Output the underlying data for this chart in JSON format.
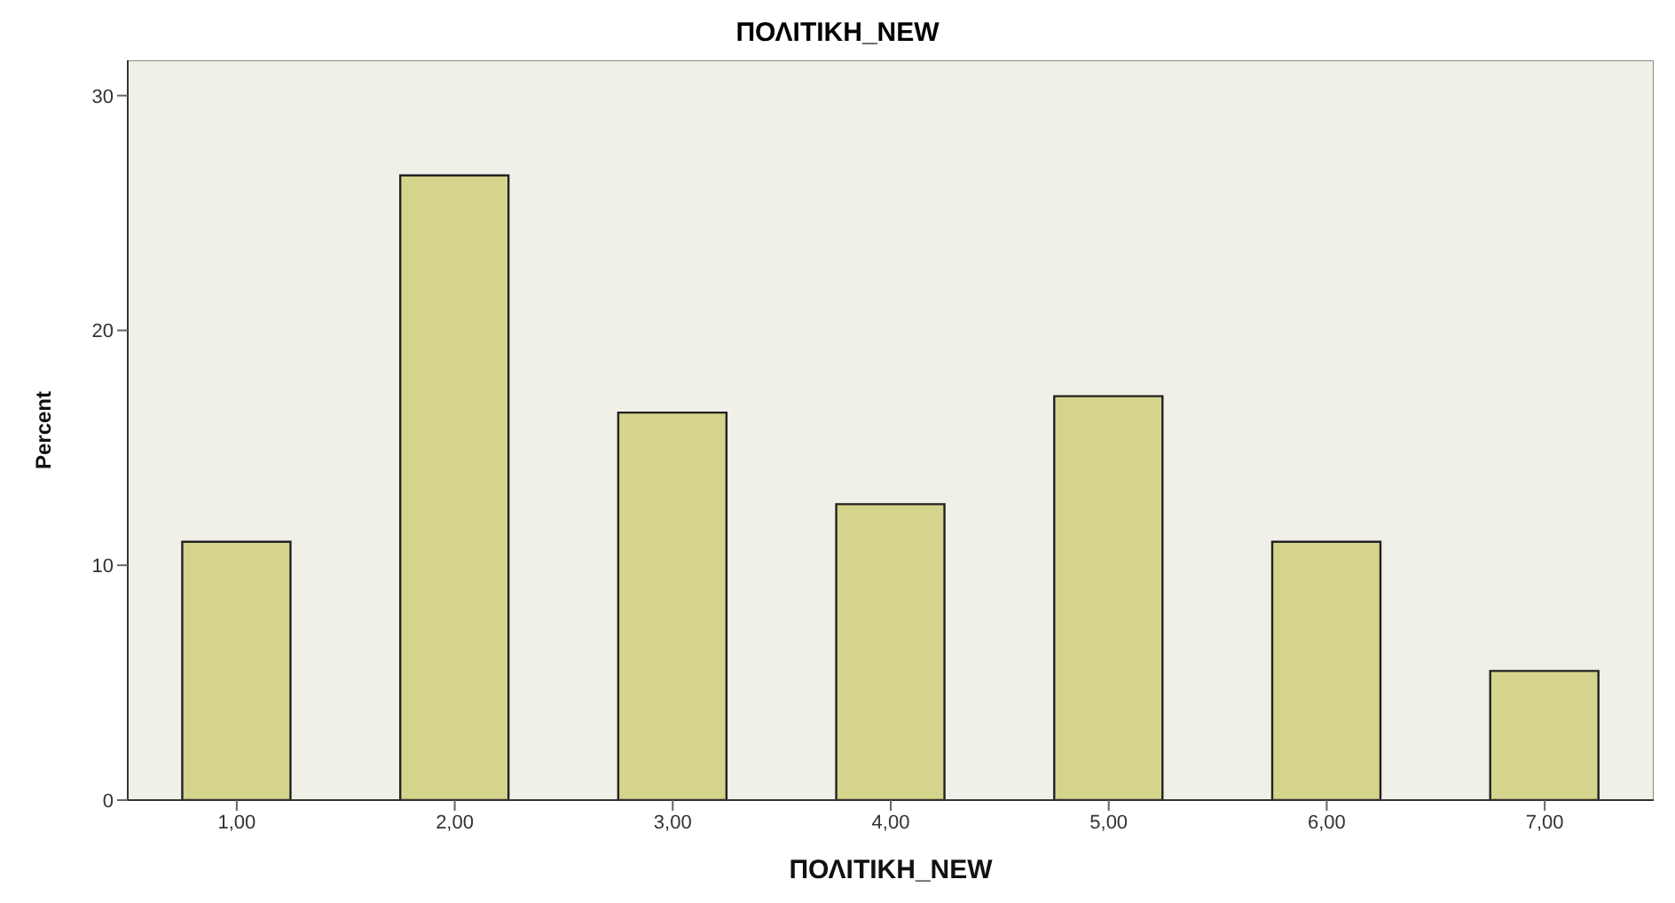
{
  "chart_data": {
    "type": "bar",
    "title": "ΠΟΛΙΤΙΚΗ_NEW",
    "xlabel": "ΠΟΛΙΤΙΚΗ_NEW",
    "ylabel": "Percent",
    "categories": [
      "1,00",
      "2,00",
      "3,00",
      "4,00",
      "5,00",
      "6,00",
      "7,00"
    ],
    "values": [
      11.0,
      26.6,
      16.5,
      12.6,
      17.2,
      11.0,
      5.5
    ],
    "color": "#d5d48c",
    "ylim": [
      0,
      31.5
    ],
    "yticks": [
      0,
      10,
      20,
      30
    ],
    "grid": false
  }
}
